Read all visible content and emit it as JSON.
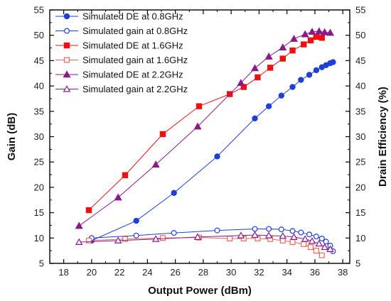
{
  "chart_data": {
    "type": "line",
    "xlabel": "Output Power (dBm)",
    "ylabel": "Gain (dB)",
    "y2label": "Drain Efficiency (%)",
    "xlim": [
      17,
      38.5
    ],
    "ylim": [
      5,
      55
    ],
    "y2lim": [
      5,
      55
    ],
    "xticks": [
      18,
      20,
      22,
      24,
      26,
      28,
      30,
      32,
      34,
      36,
      38
    ],
    "yticks": [
      5,
      10,
      15,
      20,
      25,
      30,
      35,
      40,
      45,
      50,
      55
    ],
    "y2ticks": [
      5,
      10,
      15,
      20,
      25,
      30,
      35,
      40,
      45,
      50,
      55
    ],
    "grid": false,
    "legend_position": "top-left",
    "series": [
      {
        "name": "Simulated DE at  0.8GHz",
        "axis": "right",
        "color": "#1f3fd6",
        "marker": "circle",
        "filled": true,
        "x": [
          20.0,
          23.2,
          25.9,
          29.0,
          31.7,
          32.7,
          33.6,
          34.4,
          35.0,
          35.6,
          36.1,
          36.5,
          36.8,
          37.1,
          37.3
        ],
        "y": [
          9.5,
          13.4,
          18.9,
          26.1,
          33.6,
          36.0,
          38.1,
          39.8,
          41.2,
          42.2,
          43.1,
          43.7,
          44.1,
          44.5,
          44.7
        ]
      },
      {
        "name": "Simulated gain at   0.8GHz",
        "axis": "left",
        "color": "#1f3fd6",
        "marker": "circle",
        "filled": false,
        "x": [
          20.0,
          23.2,
          25.9,
          29.0,
          31.7,
          32.7,
          33.6,
          34.4,
          35.0,
          35.6,
          36.1,
          36.5,
          36.8,
          37.1,
          37.3
        ],
        "y": [
          10.0,
          10.5,
          11.0,
          11.5,
          11.8,
          11.8,
          11.7,
          11.4,
          11.1,
          10.7,
          10.3,
          9.9,
          9.3,
          8.5,
          7.4
        ]
      },
      {
        "name": "Simulated DE at  1.6GHz",
        "axis": "right",
        "color": "#ee1111",
        "marker": "square",
        "filled": true,
        "x": [
          19.8,
          22.4,
          25.1,
          27.7,
          29.9,
          30.9,
          31.9,
          32.8,
          33.7,
          34.4,
          35.2,
          35.7,
          36.1,
          36.5
        ],
        "y": [
          15.5,
          22.4,
          30.5,
          36.0,
          38.4,
          39.8,
          41.7,
          43.6,
          45.4,
          47.0,
          48.2,
          49.0,
          49.7,
          49.5
        ]
      },
      {
        "name": "Simulated gain at  1.6GHz",
        "axis": "left",
        "color": "#ee6655",
        "marker": "square",
        "filled": false,
        "x": [
          19.8,
          22.4,
          25.1,
          27.7,
          29.9,
          30.9,
          31.9,
          32.8,
          33.7,
          34.4,
          35.2,
          35.7,
          36.1,
          36.5
        ],
        "y": [
          9.5,
          9.8,
          10.0,
          10.1,
          9.9,
          9.9,
          9.9,
          9.8,
          9.5,
          9.2,
          8.8,
          8.2,
          7.5,
          6.6
        ]
      },
      {
        "name": "Simulated DE at  2.2GHz",
        "axis": "right",
        "color": "#8a1a8a",
        "marker": "triangle",
        "filled": true,
        "x": [
          19.1,
          21.9,
          24.6,
          27.6,
          30.7,
          31.7,
          32.7,
          33.7,
          34.5,
          35.3,
          35.8,
          36.3,
          36.7,
          37.1
        ],
        "y": [
          12.4,
          18.0,
          24.5,
          32.0,
          40.6,
          43.5,
          45.8,
          47.6,
          49.3,
          50.2,
          50.7,
          50.8,
          50.6,
          50.5
        ]
      },
      {
        "name": "Simulated gain at  2.2GHz",
        "axis": "left",
        "color": "#8a1a8a",
        "marker": "triangle",
        "filled": false,
        "x": [
          19.1,
          21.9,
          24.6,
          27.6,
          30.7,
          31.7,
          32.7,
          33.7,
          34.5,
          35.3,
          35.8,
          36.3,
          36.7,
          37.1
        ],
        "y": [
          9.2,
          9.5,
          9.8,
          10.2,
          10.5,
          10.6,
          10.5,
          10.4,
          10.2,
          9.8,
          9.4,
          8.9,
          8.2,
          7.8
        ]
      }
    ]
  }
}
